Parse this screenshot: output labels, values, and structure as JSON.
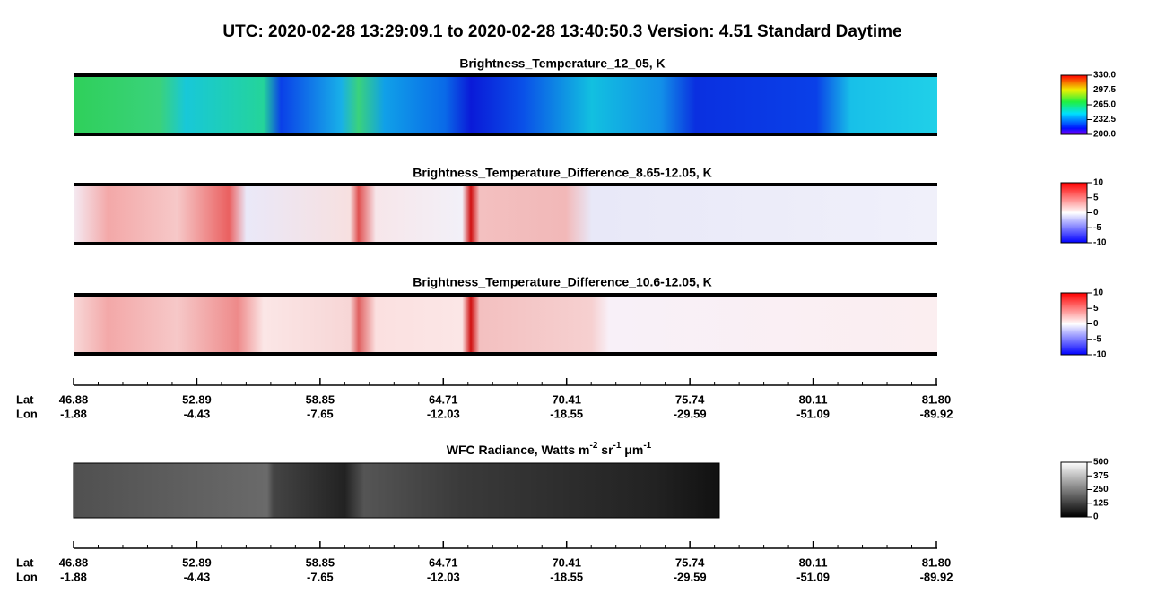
{
  "title": "UTC:  2020-02-28   13:29:09.1  to  2020-02-28   13:40:50.3    Version: 4.51  Standard Daytime",
  "panels": [
    {
      "title": "Brightness_Temperature_12_05, K",
      "colorbar": "rainbow",
      "lim": [
        200,
        330
      ],
      "ticks": [
        {
          "value": 330,
          "label": "330.0"
        },
        {
          "value": 297.5,
          "label": "297.5"
        },
        {
          "value": 265,
          "label": "265.0"
        },
        {
          "value": 232.5,
          "label": "232.5"
        },
        {
          "value": 200,
          "label": "200.0"
        }
      ]
    },
    {
      "title": "Brightness_Temperature_Difference_8.65-12.05, K",
      "colorbar": "bwr",
      "lim": [
        -10,
        10
      ],
      "ticks": [
        10,
        5,
        0,
        -5,
        -10
      ]
    },
    {
      "title": "Brightness_Temperature_Difference_10.6-12.05, K",
      "colorbar": "bwr",
      "lim": [
        -10,
        10
      ],
      "ticks": [
        10,
        5,
        0,
        -5,
        -10
      ]
    },
    {
      "title_parts": [
        "WFC Radiance, Watts m",
        "-2",
        " sr",
        "-1",
        " μm",
        "-1"
      ],
      "colorbar": "gray",
      "lim": [
        0,
        500
      ],
      "ticks": [
        500,
        375,
        250,
        125,
        0
      ]
    }
  ],
  "axis": {
    "lat_label": "Lat",
    "lon_label": "Lon",
    "lat": [
      "46.88",
      "52.89",
      "58.85",
      "64.71",
      "70.41",
      "75.74",
      "80.11",
      "81.80"
    ],
    "lon": [
      "-1.88",
      "-4.43",
      "-7.65",
      "-12.03",
      "-18.55",
      "-29.59",
      "-51.09",
      "-89.92"
    ]
  }
}
